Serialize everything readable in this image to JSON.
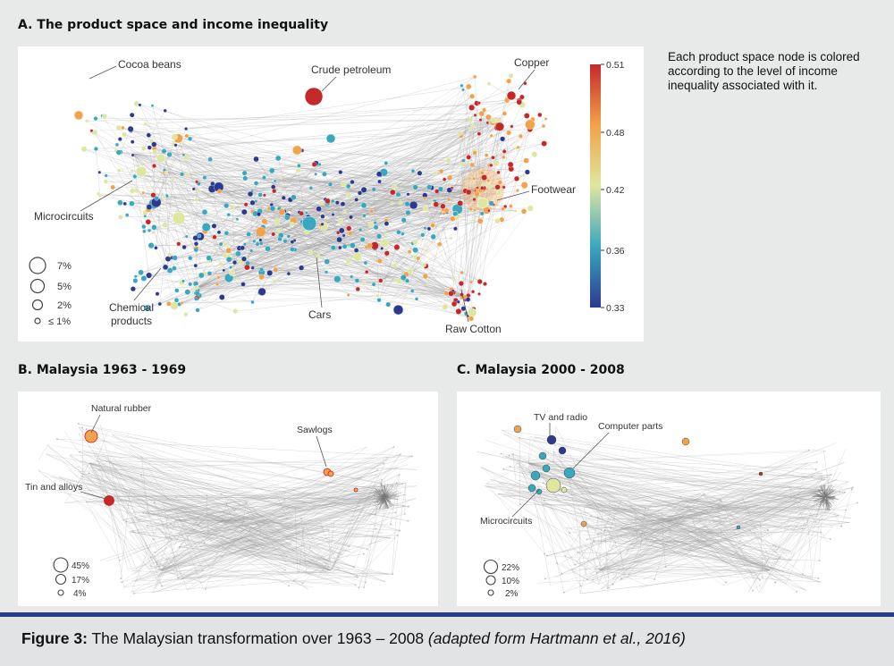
{
  "panelA": {
    "title": "A. The product space and income inequality",
    "labels": {
      "cocoa": "Cocoa beans",
      "petroleum": "Crude petroleum",
      "copper": "Copper",
      "microcircuits": "Microcircuits",
      "footwear": "Footwear",
      "chemical1": "Chemical",
      "chemical2": "products",
      "cars": "Cars",
      "cotton": "Raw Cotton"
    },
    "colorbar": {
      "ticks": [
        "0.51",
        "0.48",
        "0.42",
        "0.36",
        "0.33"
      ]
    },
    "size_legend": [
      "7%",
      "5%",
      "2%",
      "≤ 1%"
    ],
    "note": "Each product space node is colored according to the level of income inequality associated with it."
  },
  "panelB": {
    "title": "B. Malaysia 1963 - 1969",
    "labels": {
      "rubber": "Natural rubber",
      "sawlogs": "Sawlogs",
      "tin": "Tin and alloys"
    },
    "size_legend": [
      "45%",
      "17%",
      "4%"
    ]
  },
  "panelC": {
    "title": "C. Malaysia 2000 - 2008",
    "labels": {
      "tv": "TV and radio",
      "computer": "Computer parts",
      "micro": "Microcircuits"
    },
    "size_legend": [
      "22%",
      "10%",
      "2%"
    ]
  },
  "caption": {
    "label": "Figure 3:",
    "text": " The Malaysian transformation over 1963 – 2008 ",
    "source": "(adapted form Hartmann et al., 2016)"
  },
  "colors": {
    "low": "#2b3a8f",
    "mid_low": "#39a7bf",
    "mid": "#dfe6a0",
    "mid_high": "#f2a24a",
    "high": "#c4292a",
    "footer_bar": "#2b3c8c",
    "edge": "#9a9a9a"
  }
}
